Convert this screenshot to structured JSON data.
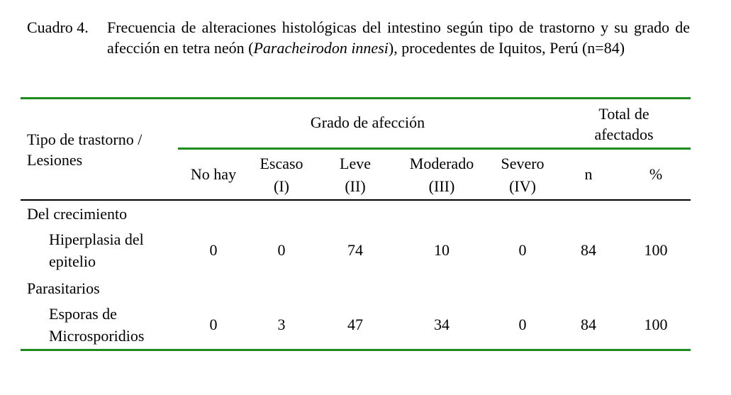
{
  "caption": {
    "label": "Cuadro 4.",
    "text_before": "Frecuencia de alteraciones histológicas del intestino según tipo de trastorno y su grado de afección en tetra neón (",
    "species": "Paracheirodon innesi",
    "text_after": "), procedentes de Iquitos, Perú (n=84)"
  },
  "header": {
    "row_label_line1": "Tipo de trastorno /",
    "row_label_line2": "Lesiones",
    "group_degree": "Grado de afección",
    "group_total_line1": "Total de",
    "group_total_line2": "afectados",
    "cols": [
      {
        "line1": "No hay",
        "line2": ""
      },
      {
        "line1": "Escaso",
        "line2": "(I)"
      },
      {
        "line1": "Leve",
        "line2": "(II)"
      },
      {
        "line1": "Moderado",
        "line2": "(III)"
      },
      {
        "line1": "Severo",
        "line2": "(IV)"
      },
      {
        "line1": "n",
        "line2": ""
      },
      {
        "line1": "%",
        "line2": ""
      }
    ]
  },
  "groups": [
    {
      "name": "Del crecimiento",
      "rows": [
        {
          "label_line1": "Hiperplasia del",
          "label_line2": "epitelio",
          "values": [
            "0",
            "0",
            "74",
            "10",
            "0",
            "84",
            "100"
          ]
        }
      ]
    },
    {
      "name": "Parasitarios",
      "rows": [
        {
          "label_line1": "Esporas de",
          "label_line2": "Microsporidios",
          "values": [
            "0",
            "3",
            "47",
            "34",
            "0",
            "84",
            "100"
          ]
        }
      ]
    }
  ]
}
